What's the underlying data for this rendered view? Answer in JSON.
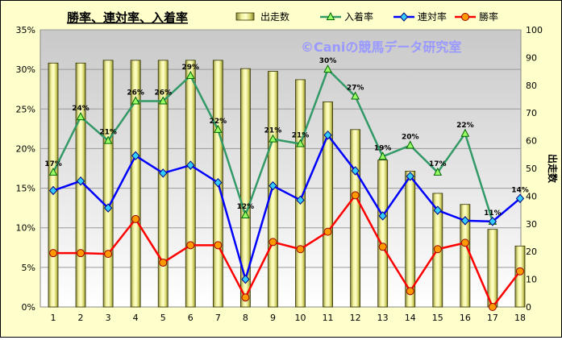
{
  "chart_data": {
    "type": "bar+line",
    "title": "勝率、連対率、入着率",
    "watermark": "©Caniの競馬データ研究室",
    "y2label": "出走数",
    "categories": [
      "1",
      "2",
      "3",
      "4",
      "5",
      "6",
      "7",
      "8",
      "9",
      "10",
      "11",
      "12",
      "13",
      "14",
      "15",
      "16",
      "17",
      "18"
    ],
    "ylim_left": [
      0,
      35
    ],
    "left_ticks": [
      "0%",
      "5%",
      "10%",
      "15%",
      "20%",
      "25%",
      "30%",
      "35%"
    ],
    "ylim_right": [
      0,
      100
    ],
    "right_ticks": [
      "0",
      "10",
      "20",
      "30",
      "40",
      "50",
      "60",
      "70",
      "80",
      "90",
      "100"
    ],
    "legend": [
      {
        "name": "出走数",
        "kind": "bar"
      },
      {
        "name": "入着率",
        "kind": "triangle"
      },
      {
        "name": "連対率",
        "kind": "diamond"
      },
      {
        "name": "勝率",
        "kind": "circle"
      }
    ],
    "bar_series": {
      "name": "出走数",
      "axis": "right",
      "values": [
        88,
        88,
        89,
        89,
        89,
        89,
        89,
        86,
        85,
        82,
        74,
        64,
        53,
        49,
        41,
        37,
        28,
        22
      ]
    },
    "line_series": [
      {
        "name": "入着率",
        "axis": "left",
        "color": "#339966",
        "marker": "triangle",
        "values": [
          17,
          24,
          21,
          26,
          26,
          29.2,
          22.4,
          11.6,
          21.2,
          20.6,
          30,
          26.6,
          19,
          20.4,
          17,
          21.9,
          10.8,
          null
        ],
        "labels": [
          "17%",
          "24%",
          "21%",
          "26%",
          "26%",
          "29%",
          "22%",
          "12%",
          "21%",
          "21%",
          "30%",
          "27%",
          "19%",
          "20%",
          "17%",
          "22%",
          "11%",
          ""
        ]
      },
      {
        "name": "連対率",
        "axis": "left",
        "color": "#0000ff",
        "marker": "diamond",
        "values": [
          14.7,
          15.9,
          12.5,
          19.1,
          16.9,
          17.9,
          15.7,
          3.5,
          15.3,
          13.5,
          21.7,
          17.2,
          11.5,
          16.5,
          12.2,
          10.9,
          10.8,
          13.7
        ],
        "labels": [
          "",
          "",
          "",
          "",
          "",
          "",
          "",
          "",
          "",
          "",
          "",
          "",
          "",
          "",
          "",
          "",
          "",
          "14%"
        ]
      },
      {
        "name": "勝率",
        "axis": "left",
        "color": "#ff0000",
        "marker": "circle",
        "values": [
          6.8,
          6.8,
          6.7,
          11.1,
          5.6,
          7.8,
          7.8,
          1.2,
          8.2,
          7.3,
          9.5,
          14.1,
          7.6,
          2.0,
          7.3,
          8.1,
          0.0,
          4.5
        ]
      }
    ]
  }
}
